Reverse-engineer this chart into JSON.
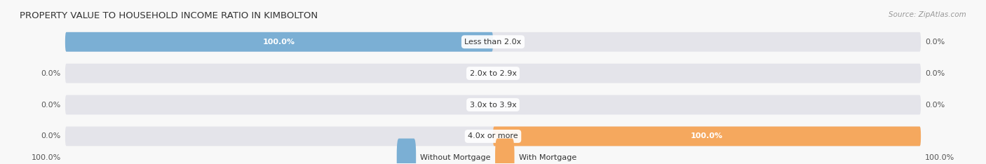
{
  "title": "PROPERTY VALUE TO HOUSEHOLD INCOME RATIO IN KIMBOLTON",
  "source": "Source: ZipAtlas.com",
  "categories": [
    "Less than 2.0x",
    "2.0x to 2.9x",
    "3.0x to 3.9x",
    "4.0x or more"
  ],
  "without_mortgage": [
    100.0,
    0.0,
    0.0,
    0.0
  ],
  "with_mortgage": [
    0.0,
    0.0,
    0.0,
    100.0
  ],
  "color_without": "#7bafd4",
  "color_with": "#f5a85e",
  "color_bg_bar": "#e4e4ea",
  "color_figure_bg": "#f8f8f8",
  "title_fontsize": 9.5,
  "source_fontsize": 7.5,
  "label_fontsize": 8,
  "legend_fontsize": 8,
  "axis_label_fontsize": 8,
  "left_axis_label": "100.0%",
  "right_axis_label": "100.0%"
}
